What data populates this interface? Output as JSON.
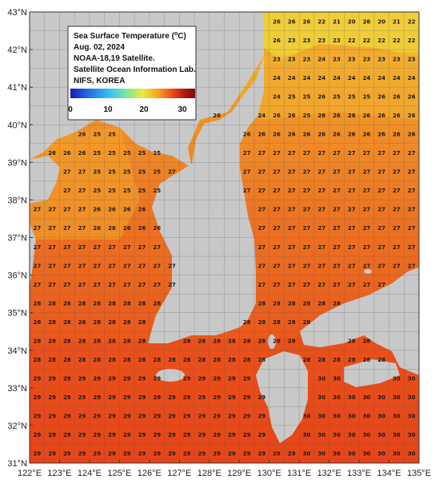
{
  "legend": {
    "line1": "Sea Surface Temperature (",
    "degree": "o",
    "unit": "C)",
    "line2": "Aug. 02, 2024",
    "line3": "NOAA-18,19 Satellite.",
    "line4": "Satellite Ocean Information Lab.",
    "line5": "NIFS, KOREA",
    "ticks": [
      "0",
      "10",
      "20",
      "30"
    ],
    "colorbar_stops": [
      "#1a1aa6",
      "#1e5fe0",
      "#36c6f0",
      "#7ee8a0",
      "#e8ea3a",
      "#f5a623",
      "#ea4a16",
      "#b01414",
      "#7a0a0a"
    ]
  },
  "axes": {
    "lat_labels": [
      "43°N",
      "42°N",
      "41°N",
      "40°N",
      "39°N",
      "38°N",
      "37°N",
      "36°N",
      "35°N",
      "34°N",
      "33°N",
      "32°N",
      "31°N"
    ],
    "lon_labels": [
      "122°E",
      "123°E",
      "124°E",
      "125°E",
      "126°E",
      "127°E",
      "128°E",
      "129°E",
      "130°E",
      "131°E",
      "132°E",
      "133°E",
      "134°E",
      "135°E"
    ]
  },
  "colors": {
    "land": "#c8c8c8",
    "warm": "#ec6a1f",
    "hot": "#e8401a",
    "mild": "#f39a2a",
    "cool": "#f4cd3c"
  },
  "grid_values": {
    "cols": [
      122.25,
      122.75,
      123.25,
      123.75,
      124.25,
      124.75,
      125.25,
      125.75,
      126.25,
      126.75,
      127.25,
      127.75,
      128.25,
      128.75,
      129.25,
      129.75,
      130.25,
      130.75,
      131.25,
      131.75,
      132.25,
      132.75,
      133.25,
      133.75,
      134.25,
      134.75
    ],
    "rows": [
      {
        "lat": 42.75,
        "v": {
          "131.25": "",
          "131.75": "22",
          "132.25": "21",
          "132.75": "20",
          "133.25": "",
          "133.75": "20",
          "134.25": "21",
          "134.75": "22"
        }
      },
      {
        "lat": 42.25,
        "v": {
          "130.75": "23",
          "131.25": "23",
          "131.75": "23",
          "132.25": "23",
          "132.75": "22",
          "133.25": "22",
          "133.75": "22",
          "134.25": "22",
          "134.75": "22"
        }
      },
      {
        "lat": 41.75,
        "v": {
          "130.25": "23",
          "130.75": "23",
          "131.25": "23",
          "131.75": "24",
          "132.25": "23",
          "132.75": "23",
          "133.25": "23",
          "133.75": "23",
          "134.25": "23",
          "134.75": "23"
        }
      },
      {
        "lat": 41.25,
        "v": {
          "130.25": "24",
          "130.75": "24",
          "131.25": "24",
          "131.75": "24",
          "132.25": "24",
          "132.75": "24",
          "133.25": "24",
          "133.75": "24",
          "134.25": "24",
          "134.75": "24"
        }
      },
      {
        "lat": 40.75,
        "v": {
          "129.75": "24",
          "130.25": "24",
          "130.75": "25",
          "131.25": "25",
          "131.75": "26",
          "132.25": "25",
          "132.75": "25",
          "133.25": "25",
          "133.75": "26",
          "134.25": "26",
          "134.75": "26"
        }
      },
      {
        "lat": 40.25,
        "v": {
          "129.25": "24",
          "129.75": "24",
          "130.25": "26",
          "130.75": "26",
          "131.25": "25",
          "131.75": "26",
          "132.25": "26",
          "132.75": "26",
          "133.25": "26",
          "133.75": "26",
          "134.25": "26",
          "134.75": "26"
        }
      }
    ],
    "regions": [
      {
        "name": "yellow_sea",
        "lon": [
          122.25,
          126.25
        ],
        "lat": [
          31.25,
          39.75
        ],
        "v": "27"
      },
      {
        "name": "east_sea",
        "lon": [
          128.25,
          134.75
        ],
        "lat": [
          35.25,
          40.25
        ],
        "v": "27"
      },
      {
        "name": "south_sea",
        "lon": [
          125.25,
          129.25
        ],
        "lat": [
          33.25,
          34.75
        ],
        "v": "28"
      },
      {
        "name": "ecs",
        "lon": [
          122.25,
          129.25
        ],
        "lat": [
          31.25,
          33.25
        ],
        "v": "29"
      },
      {
        "name": "pacific",
        "lon": [
          131.25,
          134.75
        ],
        "lat": [
          31.25,
          33.25
        ],
        "v": "30"
      }
    ]
  }
}
